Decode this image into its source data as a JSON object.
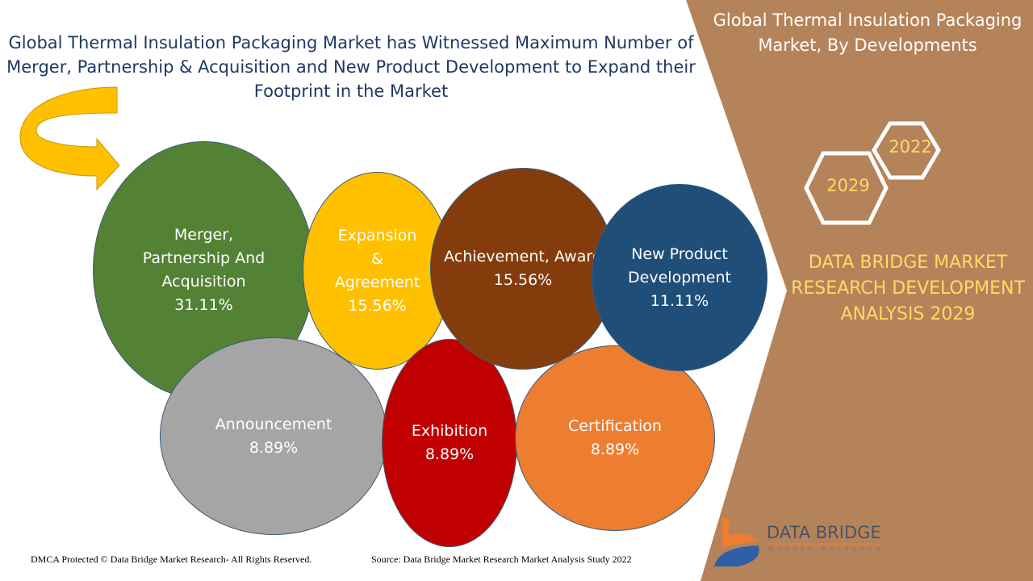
{
  "title": "Global Thermal Insulation Packaging Market has Witnessed Maximum Number of Merger, Partnership & Acquisition and New Product Development to Expand their Footprint in the Market",
  "panel": {
    "title": "Global Thermal Insulation Packaging Market, By Developments",
    "year_start": "2022",
    "year_end": "2029",
    "analysis": "DATA BRIDGE MARKET RESEARCH DEVELOPMENT ANALYSIS 2029"
  },
  "chart_data": {
    "type": "bubble",
    "title": "Global Thermal Insulation Packaging Market, By Developments",
    "categories": [
      "Merger, Partnership And Acquisition",
      "Expansion & Agreement",
      "Achievement, Award",
      "New Product Development",
      "Announcement",
      "Exhibition",
      "Certification"
    ],
    "values": [
      31.11,
      15.56,
      15.56,
      11.11,
      8.89,
      8.89,
      8.89
    ],
    "labels": [
      "31.11%",
      "15.56%",
      "15.56%",
      "11.11%",
      "8.89%",
      "8.89%",
      "8.89%"
    ],
    "colors": [
      "#548235",
      "#ffc000",
      "#843c0c",
      "#1f4e79",
      "#a5a5a5",
      "#c00000",
      "#ed7d31"
    ]
  },
  "footer": {
    "copyright": "DMCA Protected © Data Bridge Market Research- All Rights Reserved.",
    "source": "Source: Data Bridge Market Research Market Analysis Study 2022"
  },
  "logo": {
    "name": "DATA BRIDGE",
    "sub": "MARKET RESEARCH"
  }
}
